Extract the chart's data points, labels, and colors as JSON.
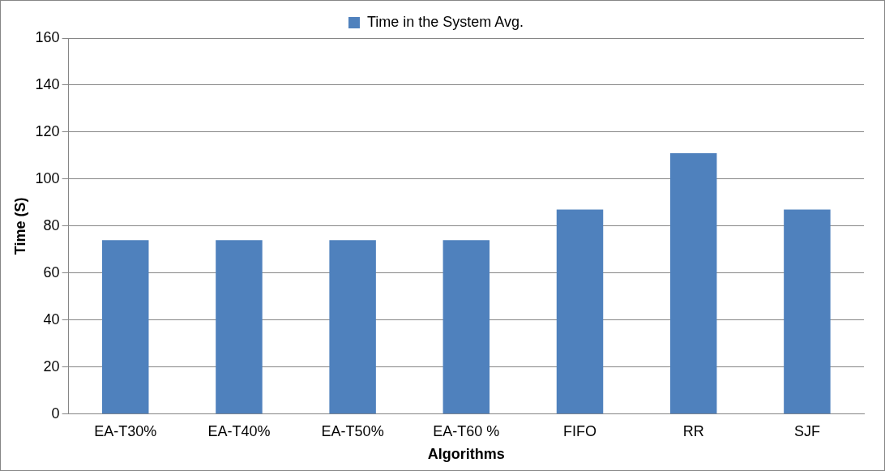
{
  "chart_data": {
    "type": "bar",
    "xlabel": "Algorithms",
    "ylabel": "Time (S)",
    "categories": [
      "EA-T30%",
      "EA-T40%",
      "EA-T50%",
      "EA-T60 %",
      "FIFO",
      "RR",
      "SJF"
    ],
    "series": [
      {
        "name": "Time in the System Avg.",
        "color": "#4f81bd",
        "values": [
          74,
          74,
          74,
          74,
          87,
          111,
          87
        ]
      }
    ],
    "ylim": [
      0,
      160
    ],
    "yticks": [
      0,
      20,
      40,
      60,
      80,
      100,
      120,
      140,
      160
    ],
    "grid": "y",
    "legend": "top"
  }
}
